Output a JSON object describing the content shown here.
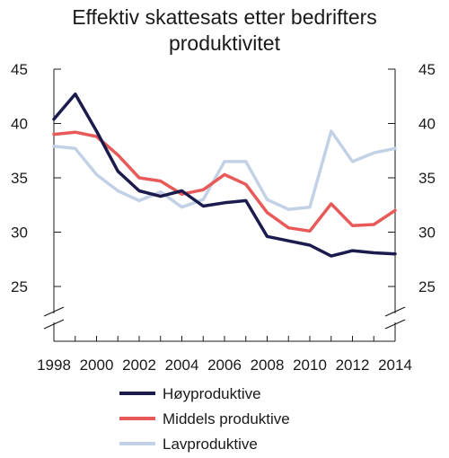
{
  "chart_data": {
    "type": "line",
    "title_lines": [
      "Effektiv skattesats etter bedrifters",
      "produktivitet"
    ],
    "x": [
      1998,
      1999,
      2000,
      2001,
      2002,
      2003,
      2004,
      2005,
      2006,
      2007,
      2008,
      2009,
      2010,
      2011,
      2012,
      2013,
      2014
    ],
    "x_tick_labels": [
      "1998",
      "2000",
      "2002",
      "2004",
      "2006",
      "2008",
      "2010",
      "2012",
      "2014"
    ],
    "y_tick_labels": [
      "25",
      "30",
      "35",
      "40",
      "45"
    ],
    "xlim": [
      1998,
      2014
    ],
    "ylim": [
      25,
      45
    ],
    "axis_break": true,
    "grid": false,
    "legend_position": "bottom",
    "series": [
      {
        "name": "Høyproduktive",
        "color": "#1b1b4d",
        "values": [
          40.4,
          42.7,
          39.3,
          35.6,
          33.8,
          33.3,
          33.8,
          32.4,
          32.7,
          32.9,
          29.6,
          29.2,
          28.8,
          27.8,
          28.3,
          28.1,
          28.0
        ]
      },
      {
        "name": "Middels produktive",
        "color": "#e85a5a",
        "values": [
          39.0,
          39.2,
          38.8,
          37.1,
          35.0,
          34.7,
          33.5,
          33.9,
          35.3,
          34.4,
          31.8,
          30.4,
          30.1,
          32.6,
          30.6,
          30.7,
          32.0
        ]
      },
      {
        "name": "Lavproduktive",
        "color": "#c3d1e6",
        "values": [
          37.9,
          37.7,
          35.3,
          33.8,
          32.9,
          33.7,
          32.3,
          33.0,
          36.5,
          36.5,
          33.0,
          32.1,
          32.3,
          39.3,
          36.5,
          37.3,
          37.7
        ]
      }
    ]
  }
}
